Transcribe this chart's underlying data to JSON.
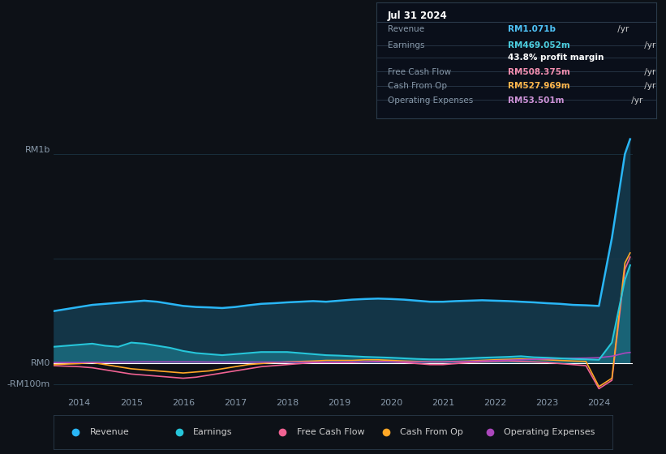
{
  "bg_color": "#0d1117",
  "plot_bg_color": "#0d1117",
  "grid_color": "#1e2a3a",
  "title_box": {
    "date": "Jul 31 2024",
    "rows": [
      {
        "label": "Revenue",
        "value": "RM1.071b",
        "value_color": "#4fc3f7",
        "has_yr": true
      },
      {
        "label": "Earnings",
        "value": "RM469.052m",
        "value_color": "#4dd0e1",
        "has_yr": true
      },
      {
        "label": "",
        "value": "43.8% profit margin",
        "value_color": "#ffffff",
        "has_yr": false
      },
      {
        "label": "Free Cash Flow",
        "value": "RM508.375m",
        "value_color": "#f48fb1",
        "has_yr": true
      },
      {
        "label": "Cash From Op",
        "value": "RM527.969m",
        "value_color": "#ffb74d",
        "has_yr": true
      },
      {
        "label": "Operating Expenses",
        "value": "RM53.501m",
        "value_color": "#ce93d8",
        "has_yr": true
      }
    ]
  },
  "ylabel_top": "RM1b",
  "ylabel_zero": "RM0",
  "ylabel_neg": "-RM100m",
  "ylim_min": -150000000,
  "ylim_max": 1150000000,
  "colors": {
    "revenue": "#29b6f6",
    "earnings": "#26c6da",
    "free_cash_flow": "#f06292",
    "cash_from_op": "#ffa726",
    "op_expenses": "#ab47bc"
  },
  "legend": [
    {
      "label": "Revenue",
      "color": "#29b6f6"
    },
    {
      "label": "Earnings",
      "color": "#26c6da"
    },
    {
      "label": "Free Cash Flow",
      "color": "#f06292"
    },
    {
      "label": "Cash From Op",
      "color": "#ffa726"
    },
    {
      "label": "Operating Expenses",
      "color": "#ab47bc"
    }
  ],
  "years": [
    2013.5,
    2014.0,
    2014.25,
    2014.5,
    2014.75,
    2015.0,
    2015.25,
    2015.5,
    2015.75,
    2016.0,
    2016.25,
    2016.5,
    2016.75,
    2017.0,
    2017.25,
    2017.5,
    2017.75,
    2018.0,
    2018.25,
    2018.5,
    2018.75,
    2019.0,
    2019.25,
    2019.5,
    2019.75,
    2020.0,
    2020.25,
    2020.5,
    2020.75,
    2021.0,
    2021.25,
    2021.5,
    2021.75,
    2022.0,
    2022.25,
    2022.5,
    2022.75,
    2023.0,
    2023.25,
    2023.5,
    2023.75,
    2024.0,
    2024.25,
    2024.5,
    2024.6
  ],
  "revenue": [
    250000000,
    270000000,
    280000000,
    285000000,
    290000000,
    295000000,
    300000000,
    295000000,
    285000000,
    275000000,
    270000000,
    268000000,
    265000000,
    270000000,
    278000000,
    285000000,
    288000000,
    292000000,
    295000000,
    298000000,
    295000000,
    300000000,
    305000000,
    308000000,
    310000000,
    308000000,
    305000000,
    300000000,
    295000000,
    295000000,
    298000000,
    300000000,
    302000000,
    300000000,
    298000000,
    295000000,
    292000000,
    288000000,
    285000000,
    280000000,
    278000000,
    275000000,
    600000000,
    1000000000,
    1071000000
  ],
  "earnings": [
    80000000,
    90000000,
    95000000,
    85000000,
    80000000,
    100000000,
    95000000,
    85000000,
    75000000,
    60000000,
    50000000,
    45000000,
    40000000,
    45000000,
    50000000,
    55000000,
    55000000,
    55000000,
    50000000,
    45000000,
    40000000,
    38000000,
    35000000,
    32000000,
    30000000,
    28000000,
    25000000,
    22000000,
    20000000,
    20000000,
    22000000,
    25000000,
    28000000,
    30000000,
    32000000,
    35000000,
    30000000,
    28000000,
    25000000,
    22000000,
    20000000,
    18000000,
    100000000,
    400000000,
    469000000
  ],
  "free_cash_flow": [
    -10000000,
    -15000000,
    -20000000,
    -30000000,
    -40000000,
    -50000000,
    -55000000,
    -60000000,
    -65000000,
    -70000000,
    -65000000,
    -55000000,
    -45000000,
    -35000000,
    -25000000,
    -15000000,
    -10000000,
    -5000000,
    0,
    5000000,
    5000000,
    5000000,
    5000000,
    8000000,
    10000000,
    8000000,
    5000000,
    0,
    -5000000,
    -5000000,
    0,
    5000000,
    8000000,
    10000000,
    12000000,
    10000000,
    8000000,
    5000000,
    0,
    -5000000,
    -10000000,
    -120000000,
    -80000000,
    450000000,
    508000000
  ],
  "cash_from_op": [
    -5000000,
    0,
    5000000,
    -5000000,
    -15000000,
    -25000000,
    -30000000,
    -35000000,
    -40000000,
    -45000000,
    -40000000,
    -35000000,
    -25000000,
    -15000000,
    -5000000,
    0,
    5000000,
    8000000,
    10000000,
    12000000,
    15000000,
    15000000,
    15000000,
    18000000,
    18000000,
    15000000,
    12000000,
    10000000,
    8000000,
    8000000,
    10000000,
    12000000,
    15000000,
    18000000,
    20000000,
    22000000,
    20000000,
    18000000,
    15000000,
    12000000,
    10000000,
    -110000000,
    -70000000,
    480000000,
    528000000
  ],
  "op_expenses": [
    5000000,
    5000000,
    6000000,
    6000000,
    7000000,
    7000000,
    8000000,
    8000000,
    8000000,
    8000000,
    8000000,
    7000000,
    7000000,
    7000000,
    7000000,
    7000000,
    7000000,
    7000000,
    7000000,
    7000000,
    7000000,
    7000000,
    8000000,
    8000000,
    8000000,
    8000000,
    8000000,
    8000000,
    8000000,
    8000000,
    9000000,
    10000000,
    12000000,
    14000000,
    16000000,
    18000000,
    20000000,
    22000000,
    24000000,
    25000000,
    26000000,
    28000000,
    35000000,
    50000000,
    53000000
  ]
}
